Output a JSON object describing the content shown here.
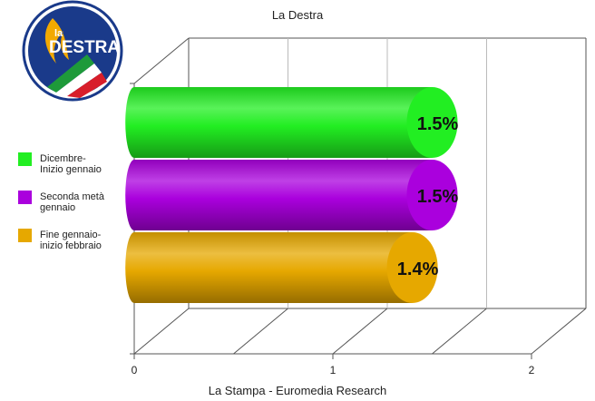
{
  "logo": {
    "prefix": "la",
    "name": "DESTRA"
  },
  "colors": {
    "green": "#22ee22",
    "purple": "#aa00dd",
    "gold": "#e6a800",
    "logo_blue": "#1a3a8a",
    "logo_flame": "#f2a900"
  },
  "chart_data": {
    "type": "bar",
    "orientation": "horizontal",
    "style": "3d-cylinder",
    "title": "La Destra",
    "xlabel": "La Stampa - Euromedia Research",
    "xlim": [
      0,
      2
    ],
    "xticks": [
      "0",
      "1",
      "2"
    ],
    "grid": true,
    "legend_position": "left",
    "series": [
      {
        "name": "Dicembre-Inizio gennaio",
        "legend_lines": [
          "Dicembre-",
          "Inizio gennaio"
        ],
        "value": 1.5,
        "label": "1.5%",
        "color": "#22ee22"
      },
      {
        "name": "Seconda metà gennaio",
        "legend_lines": [
          "Seconda metà",
          "gennaio"
        ],
        "value": 1.5,
        "label": "1.5%",
        "color": "#aa00dd"
      },
      {
        "name": "Fine gennaio-inizio febbraio",
        "legend_lines": [
          "Fine gennaio-",
          "inizio febbraio"
        ],
        "value": 1.4,
        "label": "1.4%",
        "color": "#e6a800"
      }
    ]
  }
}
